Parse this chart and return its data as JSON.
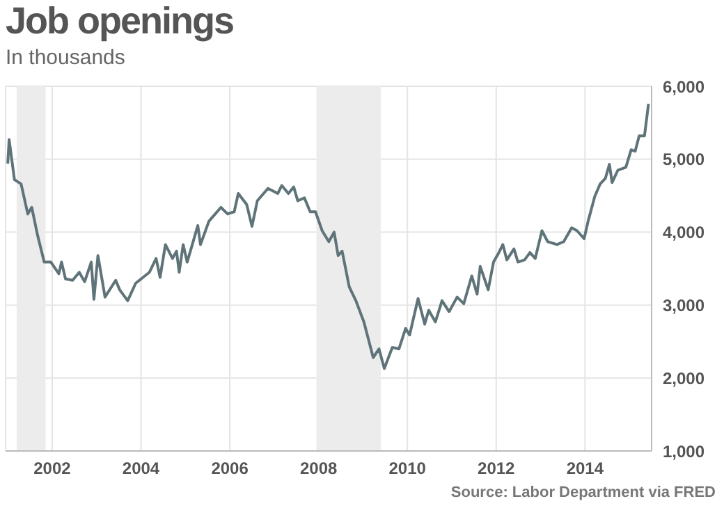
{
  "chart_data": {
    "type": "line",
    "title": "Job openings",
    "subtitle": "In thousands",
    "annotations": [
      "Source: Labor Department via FRED"
    ],
    "x": [
      2001.0,
      2001.03,
      2001.15,
      2001.3,
      2001.45,
      2001.54,
      2001.67,
      2001.82,
      2001.97,
      2002.15,
      2002.21,
      2002.3,
      2002.46,
      2002.61,
      2002.73,
      2002.88,
      2002.94,
      2003.03,
      2003.19,
      2003.43,
      2003.52,
      2003.7,
      2003.88,
      2004.19,
      2004.34,
      2004.43,
      2004.55,
      2004.71,
      2004.8,
      2004.86,
      2004.95,
      2005.04,
      2005.28,
      2005.34,
      2005.53,
      2005.8,
      2005.95,
      2006.1,
      2006.19,
      2006.38,
      2006.5,
      2006.62,
      2006.86,
      2007.08,
      2007.17,
      2007.32,
      2007.44,
      2007.53,
      2007.68,
      2007.81,
      2007.93,
      2008.08,
      2008.23,
      2008.35,
      2008.44,
      2008.53,
      2008.69,
      2008.84,
      2009.02,
      2009.23,
      2009.36,
      2009.48,
      2009.66,
      2009.81,
      2009.96,
      2010.05,
      2010.24,
      2010.39,
      2010.48,
      2010.63,
      2010.78,
      2010.94,
      2011.12,
      2011.27,
      2011.45,
      2011.57,
      2011.64,
      2011.82,
      2011.94,
      2012.06,
      2012.15,
      2012.24,
      2012.4,
      2012.49,
      2012.64,
      2012.76,
      2012.88,
      2013.03,
      2013.16,
      2013.37,
      2013.52,
      2013.7,
      2013.82,
      2013.98,
      2014.07,
      2014.22,
      2014.34,
      2014.46,
      2014.55,
      2014.61,
      2014.74,
      2014.92,
      2015.04,
      2015.13,
      2015.22,
      2015.34,
      2015.43
    ],
    "series": [
      {
        "color": "#5f7479",
        "values": [
          4940,
          5270,
          4720,
          4660,
          4250,
          4340,
          3960,
          3590,
          3590,
          3430,
          3590,
          3360,
          3340,
          3450,
          3320,
          3590,
          3080,
          3680,
          3110,
          3340,
          3210,
          3060,
          3300,
          3450,
          3640,
          3380,
          3830,
          3640,
          3740,
          3450,
          3830,
          3590,
          4090,
          3830,
          4150,
          4340,
          4250,
          4280,
          4530,
          4380,
          4080,
          4430,
          4600,
          4530,
          4640,
          4530,
          4620,
          4430,
          4470,
          4280,
          4280,
          4020,
          3870,
          4000,
          3680,
          3740,
          3250,
          3060,
          2770,
          2280,
          2400,
          2130,
          2420,
          2400,
          2680,
          2590,
          3090,
          2740,
          2930,
          2770,
          3060,
          2910,
          3110,
          3020,
          3400,
          3150,
          3530,
          3210,
          3590,
          3720,
          3830,
          3620,
          3770,
          3590,
          3620,
          3720,
          3640,
          4020,
          3870,
          3830,
          3870,
          4060,
          4020,
          3910,
          4150,
          4490,
          4660,
          4740,
          4930,
          4680,
          4850,
          4890,
          5130,
          5110,
          5320,
          5320,
          5760
        ]
      }
    ],
    "xlim": [
      2000.95,
      2015.5
    ],
    "xticks": [
      2002,
      2004,
      2006,
      2008,
      2010,
      2012,
      2014
    ],
    "ylim": [
      1000,
      6000
    ],
    "yticks": [
      {
        "value": 1000,
        "label": "1,000"
      },
      {
        "value": 2000,
        "label": "2,000"
      },
      {
        "value": 3000,
        "label": "3,000"
      },
      {
        "value": 4000,
        "label": "4,000"
      },
      {
        "value": 5000,
        "label": "5,000"
      },
      {
        "value": 6000,
        "label": "6,000"
      }
    ],
    "bands": [
      {
        "axis": "x",
        "from": 2001.2,
        "to": 2001.85,
        "color": "#ececec"
      },
      {
        "axis": "x",
        "from": 2007.95,
        "to": 2009.4,
        "color": "#ececec"
      }
    ],
    "grid": true,
    "line_style": "solid"
  }
}
